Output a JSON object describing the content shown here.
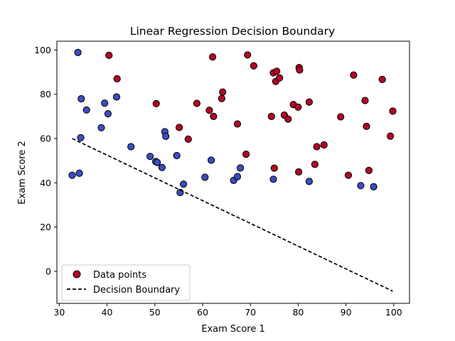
{
  "chart_data": {
    "type": "scatter",
    "title": "Linear Regression Decision Boundary",
    "xlabel": "Exam Score 1",
    "ylabel": "Exam Score 2",
    "xlim": [
      29.5,
      103.3
    ],
    "ylim": [
      -14.5,
      104.0
    ],
    "xticks": [
      30,
      40,
      50,
      60,
      70,
      80,
      90,
      100
    ],
    "yticks": [
      0,
      20,
      40,
      60,
      80,
      100
    ],
    "grid": false,
    "legend": {
      "position": "lower-left",
      "entries": [
        {
          "label": "Data points",
          "marker": "circle",
          "color": "#b40426"
        },
        {
          "label": "Decision Boundary",
          "linestyle": "dashed",
          "color": "#000000"
        }
      ]
    },
    "colors": {
      "admitted": "#b40426",
      "not_admitted": "#3b4cc0",
      "edge": "#000000",
      "boundary": "#000000"
    },
    "series": [
      {
        "class": 1,
        "color": "#b40426",
        "points": [
          [
            40.4,
            97.6
          ],
          [
            42.1,
            87.0
          ],
          [
            50.3,
            75.8
          ],
          [
            55.1,
            65.0
          ],
          [
            57.0,
            59.7
          ],
          [
            58.8,
            75.9
          ],
          [
            61.4,
            72.8
          ],
          [
            62.1,
            96.9
          ],
          [
            62.3,
            70.0
          ],
          [
            64.0,
            78.1
          ],
          [
            64.2,
            81.0
          ],
          [
            67.3,
            66.6
          ],
          [
            69.1,
            52.9
          ],
          [
            69.4,
            97.8
          ],
          [
            70.7,
            92.9
          ],
          [
            74.4,
            70.0
          ],
          [
            74.8,
            89.7
          ],
          [
            75.0,
            46.6
          ],
          [
            75.3,
            85.8
          ],
          [
            75.5,
            90.4
          ],
          [
            76.1,
            87.4
          ],
          [
            77.1,
            70.6
          ],
          [
            77.9,
            68.8
          ],
          [
            79.0,
            75.4
          ],
          [
            80.0,
            74.2
          ],
          [
            80.1,
            44.9
          ],
          [
            80.2,
            92.1
          ],
          [
            80.3,
            91.0
          ],
          [
            82.3,
            76.5
          ],
          [
            83.5,
            48.3
          ],
          [
            83.9,
            56.3
          ],
          [
            85.4,
            57.1
          ],
          [
            88.9,
            69.8
          ],
          [
            90.5,
            43.4
          ],
          [
            91.6,
            88.7
          ],
          [
            94.0,
            77.2
          ],
          [
            94.3,
            65.5
          ],
          [
            94.8,
            45.6
          ],
          [
            97.6,
            86.7
          ],
          [
            99.3,
            61.1
          ],
          [
            99.8,
            72.4
          ]
        ]
      },
      {
        "class": 0,
        "color": "#3b4cc0",
        "points": [
          [
            32.7,
            43.4
          ],
          [
            33.9,
            98.9
          ],
          [
            34.2,
            44.3
          ],
          [
            34.5,
            60.4
          ],
          [
            34.6,
            78.0
          ],
          [
            35.7,
            72.9
          ],
          [
            38.8,
            64.9
          ],
          [
            39.5,
            76.0
          ],
          [
            40.2,
            71.2
          ],
          [
            42.0,
            78.8
          ],
          [
            45.0,
            56.3
          ],
          [
            49.0,
            51.9
          ],
          [
            50.2,
            49.6
          ],
          [
            50.5,
            49.2
          ],
          [
            51.5,
            46.9
          ],
          [
            52.1,
            63.1
          ],
          [
            52.3,
            61.0
          ],
          [
            54.6,
            52.3
          ],
          [
            55.3,
            35.6
          ],
          [
            56.0,
            39.4
          ],
          [
            60.5,
            42.5
          ],
          [
            61.8,
            50.2
          ],
          [
            66.5,
            41.1
          ],
          [
            67.3,
            42.8
          ],
          [
            67.9,
            46.7
          ],
          [
            74.8,
            41.6
          ],
          [
            82.3,
            40.6
          ],
          [
            93.1,
            38.7
          ],
          [
            95.8,
            38.2
          ]
        ]
      }
    ],
    "boundary": {
      "label": "Decision Boundary",
      "x": [
        32.7,
        99.8
      ],
      "y": [
        60.0,
        -9.0
      ]
    }
  }
}
